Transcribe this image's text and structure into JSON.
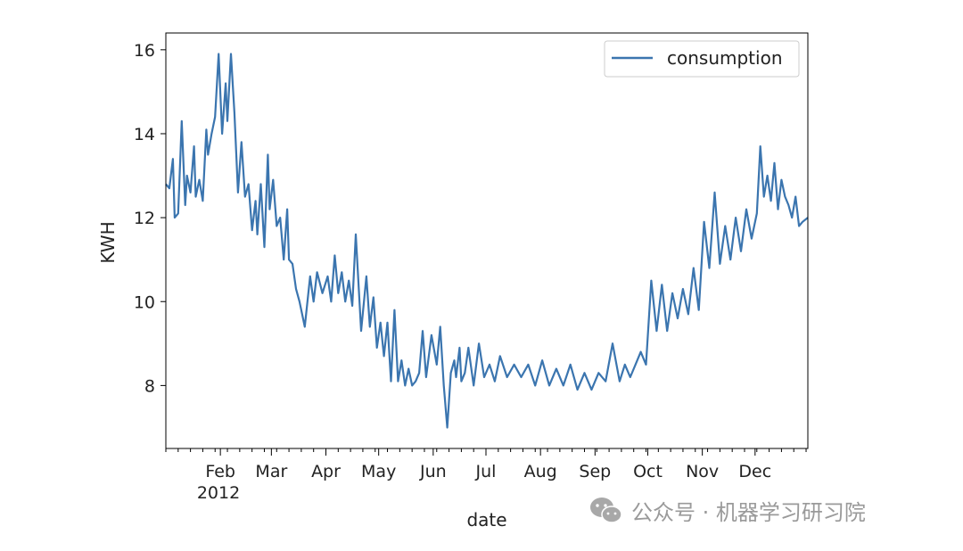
{
  "chart_data": {
    "type": "line",
    "xlabel": "date",
    "ylabel": "KWH",
    "year_label": "2012",
    "x_range": [
      "2012-01-01",
      "2012-12-31"
    ],
    "ylim": [
      6.5,
      16.4
    ],
    "y_ticks": [
      8,
      10,
      12,
      14,
      16
    ],
    "x_ticks": [
      {
        "date": "2012-02-01",
        "label": "Feb"
      },
      {
        "date": "2012-03-01",
        "label": "Mar"
      },
      {
        "date": "2012-04-01",
        "label": "Apr"
      },
      {
        "date": "2012-05-01",
        "label": "May"
      },
      {
        "date": "2012-06-01",
        "label": "Jun"
      },
      {
        "date": "2012-07-01",
        "label": "Jul"
      },
      {
        "date": "2012-08-01",
        "label": "Aug"
      },
      {
        "date": "2012-09-01",
        "label": "Sep"
      },
      {
        "date": "2012-10-01",
        "label": "Oct"
      },
      {
        "date": "2012-11-01",
        "label": "Nov"
      },
      {
        "date": "2012-12-01",
        "label": "Dec"
      }
    ],
    "grid": false,
    "legend": {
      "position": "top-right",
      "entries": [
        "consumption"
      ]
    },
    "series": [
      {
        "name": "consumption",
        "color": "#3b75af",
        "x": [
          "2012-01-01",
          "2012-01-03",
          "2012-01-05",
          "2012-01-06",
          "2012-01-08",
          "2012-01-10",
          "2012-01-12",
          "2012-01-13",
          "2012-01-15",
          "2012-01-17",
          "2012-01-18",
          "2012-01-20",
          "2012-01-22",
          "2012-01-24",
          "2012-01-25",
          "2012-01-27",
          "2012-01-29",
          "2012-01-31",
          "2012-02-02",
          "2012-02-04",
          "2012-02-05",
          "2012-02-07",
          "2012-02-09",
          "2012-02-11",
          "2012-02-13",
          "2012-02-15",
          "2012-02-17",
          "2012-02-19",
          "2012-02-21",
          "2012-02-22",
          "2012-02-24",
          "2012-02-26",
          "2012-02-28",
          "2012-02-29",
          "2012-03-02",
          "2012-03-04",
          "2012-03-06",
          "2012-03-08",
          "2012-03-10",
          "2012-03-11",
          "2012-03-13",
          "2012-03-15",
          "2012-03-17",
          "2012-03-20",
          "2012-03-23",
          "2012-03-25",
          "2012-03-27",
          "2012-03-30",
          "2012-04-02",
          "2012-04-04",
          "2012-04-06",
          "2012-04-08",
          "2012-04-10",
          "2012-04-12",
          "2012-04-14",
          "2012-04-16",
          "2012-04-18",
          "2012-04-21",
          "2012-04-24",
          "2012-04-26",
          "2012-04-28",
          "2012-04-30",
          "2012-05-02",
          "2012-05-04",
          "2012-05-06",
          "2012-05-08",
          "2012-05-10",
          "2012-05-12",
          "2012-05-14",
          "2012-05-16",
          "2012-05-18",
          "2012-05-20",
          "2012-05-22",
          "2012-05-24",
          "2012-05-26",
          "2012-05-28",
          "2012-05-31",
          "2012-06-03",
          "2012-06-05",
          "2012-06-07",
          "2012-06-09",
          "2012-06-11",
          "2012-06-13",
          "2012-06-14",
          "2012-06-16",
          "2012-06-17",
          "2012-06-19",
          "2012-06-21",
          "2012-06-24",
          "2012-06-27",
          "2012-06-30",
          "2012-07-03",
          "2012-07-06",
          "2012-07-09",
          "2012-07-13",
          "2012-07-17",
          "2012-07-21",
          "2012-07-25",
          "2012-07-29",
          "2012-08-02",
          "2012-08-06",
          "2012-08-10",
          "2012-08-14",
          "2012-08-18",
          "2012-08-22",
          "2012-08-26",
          "2012-08-30",
          "2012-09-03",
          "2012-09-07",
          "2012-09-11",
          "2012-09-15",
          "2012-09-18",
          "2012-09-21",
          "2012-09-24",
          "2012-09-27",
          "2012-09-30",
          "2012-10-03",
          "2012-10-06",
          "2012-10-09",
          "2012-10-12",
          "2012-10-15",
          "2012-10-18",
          "2012-10-21",
          "2012-10-24",
          "2012-10-27",
          "2012-10-30",
          "2012-11-02",
          "2012-11-05",
          "2012-11-08",
          "2012-11-11",
          "2012-11-14",
          "2012-11-17",
          "2012-11-20",
          "2012-11-23",
          "2012-11-26",
          "2012-11-29",
          "2012-12-02",
          "2012-12-04",
          "2012-12-06",
          "2012-12-08",
          "2012-12-10",
          "2012-12-12",
          "2012-12-14",
          "2012-12-16",
          "2012-12-18",
          "2012-12-20",
          "2012-12-22",
          "2012-12-24",
          "2012-12-26",
          "2012-12-28",
          "2012-12-31"
        ],
        "y": [
          12.8,
          12.7,
          13.4,
          12.0,
          12.1,
          14.3,
          12.3,
          13.0,
          12.6,
          13.7,
          12.5,
          12.9,
          12.4,
          14.1,
          13.5,
          14.0,
          14.4,
          15.9,
          14.0,
          15.2,
          14.3,
          15.9,
          14.5,
          12.6,
          13.8,
          12.5,
          12.8,
          11.7,
          12.4,
          11.6,
          12.8,
          11.3,
          13.5,
          12.2,
          12.9,
          11.8,
          12.0,
          11.0,
          12.2,
          11.0,
          10.9,
          10.3,
          10.0,
          9.4,
          10.6,
          10.0,
          10.7,
          10.2,
          10.6,
          10.0,
          11.1,
          10.2,
          10.7,
          10.0,
          10.5,
          9.9,
          11.6,
          9.3,
          10.6,
          9.4,
          10.1,
          8.9,
          9.5,
          8.7,
          9.5,
          8.1,
          9.8,
          8.1,
          8.6,
          8.0,
          8.4,
          8.0,
          8.1,
          8.3,
          9.3,
          8.2,
          9.2,
          8.5,
          9.4,
          8.0,
          7.0,
          8.3,
          8.6,
          8.2,
          8.9,
          8.1,
          8.3,
          8.9,
          8.0,
          9.0,
          8.2,
          8.5,
          8.1,
          8.7,
          8.2,
          8.5,
          8.2,
          8.5,
          8.0,
          8.6,
          8.0,
          8.4,
          8.0,
          8.5,
          7.9,
          8.3,
          7.9,
          8.3,
          8.1,
          9.0,
          8.1,
          8.5,
          8.2,
          8.5,
          8.8,
          8.5,
          10.5,
          9.3,
          10.4,
          9.3,
          10.2,
          9.6,
          10.3,
          9.7,
          10.8,
          9.8,
          11.9,
          10.8,
          12.6,
          10.9,
          11.8,
          11.0,
          12.0,
          11.2,
          12.2,
          11.5,
          12.1,
          13.7,
          12.5,
          13.0,
          12.4,
          13.3,
          12.2,
          12.9,
          12.5,
          12.3,
          12.0,
          12.5,
          11.8,
          11.9,
          12.0
        ]
      }
    ]
  },
  "watermark": {
    "icon": "wechat-icon",
    "text": "公众号 · 机器学习研习院"
  }
}
